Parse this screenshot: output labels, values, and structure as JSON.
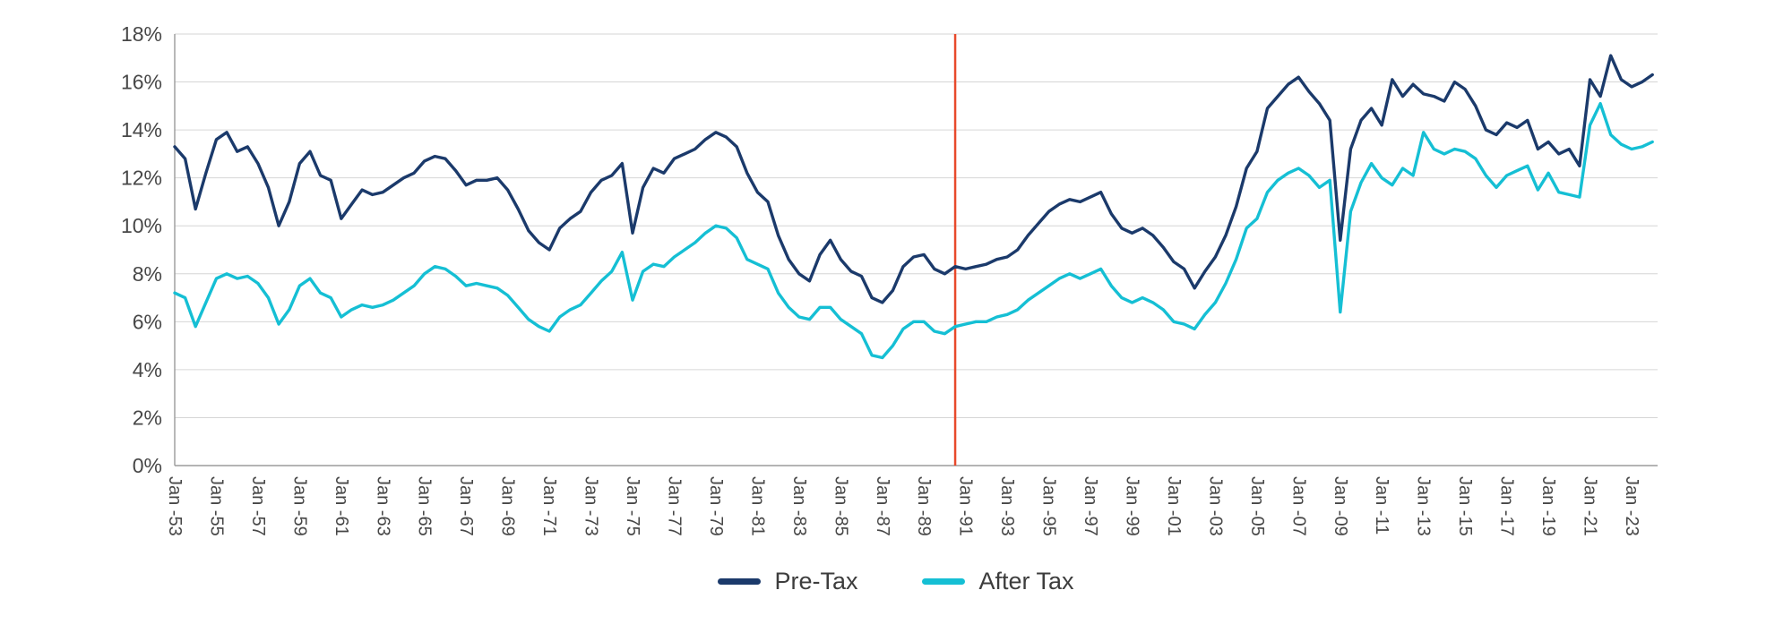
{
  "chart_data": {
    "type": "line",
    "title": "",
    "xlabel": "",
    "ylabel": "",
    "xlim": [
      1953,
      2024.25
    ],
    "ylim": [
      0,
      18
    ],
    "grid": true,
    "legend_position": "bottom-center",
    "colors": {
      "grid": "#d6d6d6",
      "axis": "#9b9b9b",
      "tick_text": "#474747"
    },
    "y_ticks": [
      0,
      2,
      4,
      6,
      8,
      10,
      12,
      14,
      16,
      18
    ],
    "y_tick_labels": [
      "0%",
      "2%",
      "4%",
      "6%",
      "8%",
      "10%",
      "12%",
      "14%",
      "16%",
      "18%"
    ],
    "x_tick_years": [
      1953,
      1955,
      1957,
      1959,
      1961,
      1963,
      1965,
      1967,
      1969,
      1971,
      1973,
      1975,
      1977,
      1979,
      1981,
      1983,
      1985,
      1987,
      1989,
      1991,
      1993,
      1995,
      1997,
      1999,
      2001,
      2003,
      2005,
      2007,
      2009,
      2011,
      2013,
      2015,
      2017,
      2019,
      2021,
      2023
    ],
    "x_tick_labels": [
      "Jan -53",
      "Jan -55",
      "Jan -57",
      "Jan -59",
      "Jan -61",
      "Jan -63",
      "Jan -65",
      "Jan -67",
      "Jan -69",
      "Jan -71",
      "Jan -73",
      "Jan -75",
      "Jan -77",
      "Jan -79",
      "Jan -81",
      "Jan -83",
      "Jan -85",
      "Jan -87",
      "Jan -89",
      "Jan -91",
      "Jan -93",
      "Jan -95",
      "Jan -97",
      "Jan -99",
      "Jan -01",
      "Jan -03",
      "Jan -05",
      "Jan -07",
      "Jan -09",
      "Jan -11",
      "Jan -13",
      "Jan -15",
      "Jan -17",
      "Jan -19",
      "Jan -21",
      "Jan -23"
    ],
    "annotation_line": {
      "x": 1990.5,
      "color": "#e8492b"
    },
    "x": [
      1953,
      1953.5,
      1954,
      1954.5,
      1955,
      1955.5,
      1956,
      1956.5,
      1957,
      1957.5,
      1958,
      1958.5,
      1959,
      1959.5,
      1960,
      1960.5,
      1961,
      1961.5,
      1962,
      1962.5,
      1963,
      1963.5,
      1964,
      1964.5,
      1965,
      1965.5,
      1966,
      1966.5,
      1967,
      1967.5,
      1968,
      1968.5,
      1969,
      1969.5,
      1970,
      1970.5,
      1971,
      1971.5,
      1972,
      1972.5,
      1973,
      1973.5,
      1974,
      1974.5,
      1975,
      1975.5,
      1976,
      1976.5,
      1977,
      1977.5,
      1978,
      1978.5,
      1979,
      1979.5,
      1980,
      1980.5,
      1981,
      1981.5,
      1982,
      1982.5,
      1983,
      1983.5,
      1984,
      1984.5,
      1985,
      1985.5,
      1986,
      1986.5,
      1987,
      1987.5,
      1988,
      1988.5,
      1989,
      1989.5,
      1990,
      1990.5,
      1991,
      1991.5,
      1992,
      1992.5,
      1993,
      1993.5,
      1994,
      1994.5,
      1995,
      1995.5,
      1996,
      1996.5,
      1997,
      1997.5,
      1998,
      1998.5,
      1999,
      1999.5,
      2000,
      2000.5,
      2001,
      2001.5,
      2002,
      2002.5,
      2003,
      2003.5,
      2004,
      2004.5,
      2005,
      2005.5,
      2006,
      2006.5,
      2007,
      2007.5,
      2008,
      2008.5,
      2009,
      2009.5,
      2010,
      2010.5,
      2011,
      2011.5,
      2012,
      2012.5,
      2013,
      2013.5,
      2014,
      2014.5,
      2015,
      2015.5,
      2016,
      2016.5,
      2017,
      2017.5,
      2018,
      2018.5,
      2019,
      2019.5,
      2020,
      2020.5,
      2021,
      2021.5,
      2022,
      2022.5,
      2023,
      2023.5,
      2024
    ],
    "series": [
      {
        "name": "Pre-Tax",
        "color": "#1b3a6b",
        "values": [
          13.3,
          12.8,
          10.7,
          12.2,
          13.6,
          13.9,
          13.1,
          13.3,
          12.6,
          11.6,
          10.0,
          11.0,
          12.6,
          13.1,
          12.1,
          11.9,
          10.3,
          10.9,
          11.5,
          11.3,
          11.4,
          11.7,
          12.0,
          12.2,
          12.7,
          12.9,
          12.8,
          12.3,
          11.7,
          11.9,
          11.9,
          12.0,
          11.5,
          10.7,
          9.8,
          9.3,
          9.0,
          9.9,
          10.3,
          10.6,
          11.4,
          11.9,
          12.1,
          12.6,
          9.7,
          11.6,
          12.4,
          12.2,
          12.8,
          13.0,
          13.2,
          13.6,
          13.9,
          13.7,
          13.3,
          12.2,
          11.4,
          11.0,
          9.6,
          8.6,
          8.0,
          7.7,
          8.8,
          9.4,
          8.6,
          8.1,
          7.9,
          7.0,
          6.8,
          7.3,
          8.3,
          8.7,
          8.8,
          8.2,
          8.0,
          8.3,
          8.2,
          8.3,
          8.4,
          8.6,
          8.7,
          9.0,
          9.6,
          10.1,
          10.6,
          10.9,
          11.1,
          11.0,
          11.2,
          11.4,
          10.5,
          9.9,
          9.7,
          9.9,
          9.6,
          9.1,
          8.5,
          8.2,
          7.4,
          8.1,
          8.7,
          9.6,
          10.8,
          12.4,
          13.1,
          14.9,
          15.4,
          15.9,
          16.2,
          15.6,
          15.1,
          14.4,
          9.4,
          13.2,
          14.4,
          14.9,
          14.2,
          16.1,
          15.4,
          15.9,
          15.5,
          15.4,
          15.2,
          16.0,
          15.7,
          15.0,
          14.0,
          13.8,
          14.3,
          14.1,
          14.4,
          13.2,
          13.5,
          13.0,
          13.2,
          12.5,
          16.1,
          15.4,
          17.1,
          16.1,
          15.8,
          16.0,
          16.3
        ]
      },
      {
        "name": "After Tax",
        "color": "#15bfd4",
        "values": [
          7.2,
          7.0,
          5.8,
          6.8,
          7.8,
          8.0,
          7.8,
          7.9,
          7.6,
          7.0,
          5.9,
          6.5,
          7.5,
          7.8,
          7.2,
          7.0,
          6.2,
          6.5,
          6.7,
          6.6,
          6.7,
          6.9,
          7.2,
          7.5,
          8.0,
          8.3,
          8.2,
          7.9,
          7.5,
          7.6,
          7.5,
          7.4,
          7.1,
          6.6,
          6.1,
          5.8,
          5.6,
          6.2,
          6.5,
          6.7,
          7.2,
          7.7,
          8.1,
          8.9,
          6.9,
          8.1,
          8.4,
          8.3,
          8.7,
          9.0,
          9.3,
          9.7,
          10.0,
          9.9,
          9.5,
          8.6,
          8.4,
          8.2,
          7.2,
          6.6,
          6.2,
          6.1,
          6.6,
          6.6,
          6.1,
          5.8,
          5.5,
          4.6,
          4.5,
          5.0,
          5.7,
          6.0,
          6.0,
          5.6,
          5.5,
          5.8,
          5.9,
          6.0,
          6.0,
          6.2,
          6.3,
          6.5,
          6.9,
          7.2,
          7.5,
          7.8,
          8.0,
          7.8,
          8.0,
          8.2,
          7.5,
          7.0,
          6.8,
          7.0,
          6.8,
          6.5,
          6.0,
          5.9,
          5.7,
          6.3,
          6.8,
          7.6,
          8.6,
          9.9,
          10.3,
          11.4,
          11.9,
          12.2,
          12.4,
          12.1,
          11.6,
          11.9,
          6.4,
          10.6,
          11.8,
          12.6,
          12.0,
          11.7,
          12.4,
          12.1,
          13.9,
          13.2,
          13.0,
          13.2,
          13.1,
          12.8,
          12.1,
          11.6,
          12.1,
          12.3,
          12.5,
          11.5,
          12.2,
          11.4,
          11.3,
          11.2,
          14.2,
          15.1,
          13.8,
          13.4,
          13.2,
          13.3,
          13.5
        ]
      }
    ]
  }
}
